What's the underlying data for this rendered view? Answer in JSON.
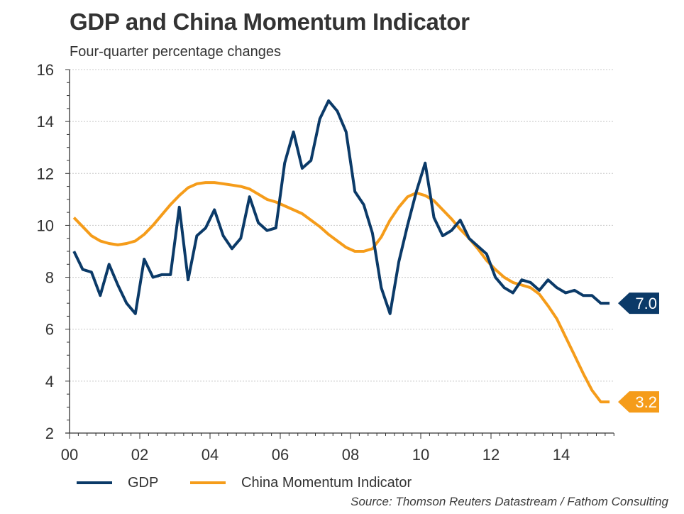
{
  "chart_data": {
    "type": "line",
    "title": "GDP and China Momentum Indicator",
    "subtitle": "Four-quarter percentage changes",
    "xlabel": "",
    "ylabel": "",
    "ylim": [
      2,
      16
    ],
    "yticks": [
      2,
      4,
      6,
      8,
      10,
      12,
      14,
      16
    ],
    "ytick_labels": [
      "2",
      "4",
      "6",
      "8",
      "10",
      "12",
      "14",
      "16"
    ],
    "xlim": [
      2000,
      2015.6
    ],
    "xticks": [
      2000,
      2002,
      2004,
      2006,
      2008,
      2010,
      2012,
      2014
    ],
    "xtick_labels": [
      "00",
      "02",
      "04",
      "06",
      "08",
      "10",
      "12",
      "14"
    ],
    "grid": true,
    "legend_position": "bottom-left",
    "x_start": 2000.125,
    "x_step": 0.25,
    "series": [
      {
        "name": "GDP",
        "color": "#0b3a68",
        "end_label": "7.0",
        "values": [
          9.0,
          8.3,
          8.2,
          7.3,
          8.5,
          7.7,
          7.0,
          6.6,
          8.7,
          8.0,
          8.1,
          8.1,
          10.7,
          7.9,
          9.6,
          9.9,
          10.6,
          9.6,
          9.1,
          9.5,
          11.1,
          10.1,
          9.8,
          9.9,
          12.4,
          13.6,
          12.2,
          12.5,
          14.1,
          14.8,
          14.4,
          13.6,
          11.3,
          10.8,
          9.7,
          7.6,
          6.6,
          8.6,
          10.0,
          11.3,
          12.4,
          10.3,
          9.6,
          9.8,
          10.2,
          9.5,
          9.2,
          8.9,
          8.0,
          7.6,
          7.4,
          7.9,
          7.8,
          7.5,
          7.9,
          7.6,
          7.4,
          7.5,
          7.3,
          7.3,
          7.0,
          7.0
        ]
      },
      {
        "name": "China Momentum Indicator",
        "color": "#f59c1a",
        "end_label": "3.2",
        "values": [
          10.3,
          9.95,
          9.6,
          9.4,
          9.3,
          9.25,
          9.3,
          9.4,
          9.65,
          10.0,
          10.4,
          10.8,
          11.15,
          11.45,
          11.6,
          11.65,
          11.65,
          11.6,
          11.55,
          11.5,
          11.4,
          11.2,
          11.0,
          10.9,
          10.75,
          10.6,
          10.45,
          10.2,
          9.95,
          9.65,
          9.4,
          9.15,
          9.0,
          9.0,
          9.1,
          9.55,
          10.2,
          10.7,
          11.1,
          11.25,
          11.15,
          10.95,
          10.6,
          10.25,
          9.85,
          9.5,
          9.1,
          8.65,
          8.3,
          8.0,
          7.8,
          7.7,
          7.6,
          7.35,
          6.9,
          6.4,
          5.7,
          5.0,
          4.3,
          3.65,
          3.2,
          3.2
        ]
      }
    ],
    "source": "Source: Thomson Reuters Datastream / Fathom Consulting"
  }
}
